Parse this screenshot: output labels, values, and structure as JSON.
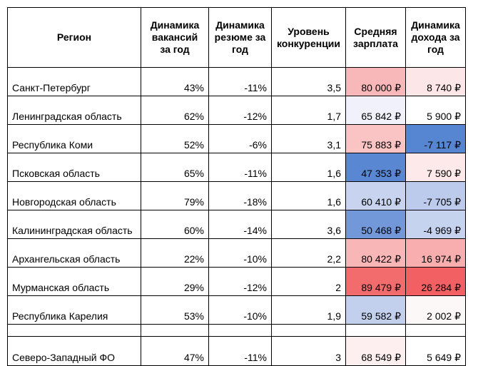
{
  "headers": {
    "region": "Регион",
    "vacancies": "Динамика вакансий за год",
    "resumes": "Динамика резюме за год",
    "competition": "Уровень конкуренции",
    "salary": "Средняя зарплата",
    "income": "Динамика дохода за год"
  },
  "rows": [
    {
      "region": "Санкт-Петербург",
      "vacancies": "43%",
      "resumes": "-11%",
      "competition": "3,5",
      "salary": "80 000 ₽",
      "income": "8 740 ₽"
    },
    {
      "region": "Ленинградская область",
      "vacancies": "62%",
      "resumes": "-12%",
      "competition": "1,7",
      "salary": "65 842 ₽",
      "income": "5 900 ₽"
    },
    {
      "region": "Республика Коми",
      "vacancies": "52%",
      "resumes": "-6%",
      "competition": "3,1",
      "salary": "75 883 ₽",
      "income": "-7 117 ₽"
    },
    {
      "region": "Псковская область",
      "vacancies": "65%",
      "resumes": "-11%",
      "competition": "1,6",
      "salary": "47 353 ₽",
      "income": "7 590 ₽"
    },
    {
      "region": "Новгородская область",
      "vacancies": "79%",
      "resumes": "-18%",
      "competition": "1,6",
      "salary": "60 410 ₽",
      "income": "-7 705 ₽"
    },
    {
      "region": "Калининградская область",
      "vacancies": "60%",
      "resumes": "-14%",
      "competition": "3,6",
      "salary": "50 468 ₽",
      "income": "-4 969 ₽"
    },
    {
      "region": "Архангельская область",
      "vacancies": "22%",
      "resumes": "-10%",
      "competition": "2,2",
      "salary": "80 422 ₽",
      "income": "16 974 ₽"
    },
    {
      "region": "Мурманская область",
      "vacancies": "29%",
      "resumes": "-12%",
      "competition": "2",
      "salary": "89 479 ₽",
      "income": "26 284 ₽"
    },
    {
      "region": "Республика Карелия",
      "vacancies": "53%",
      "resumes": "-10%",
      "competition": "1,9",
      "salary": "59 582 ₽",
      "income": "2 002 ₽"
    }
  ],
  "total": {
    "region": "Северо-Западный ФО",
    "vacancies": "47%",
    "resumes": "-11%",
    "competition": "3",
    "salary": "68 549 ₽",
    "income": "5 649 ₽"
  },
  "colors": {
    "salary": [
      "#f8b7b8",
      "#f0f1fa",
      "#fac3c4",
      "#5987d2",
      "#c8d4ef",
      "#7398d9",
      "#f8b6b7",
      "#f26b6d",
      "#c2cfed"
    ],
    "income": [
      "#fde6e7",
      "#ffffff",
      "#5685d2",
      "#fee9ea",
      "#bccbeb",
      "#c6d3ee",
      "#f8aeaf",
      "#f26063",
      "#fdf8f8"
    ],
    "total_salary": "#fdeeef",
    "total_income": "#ffffff"
  }
}
